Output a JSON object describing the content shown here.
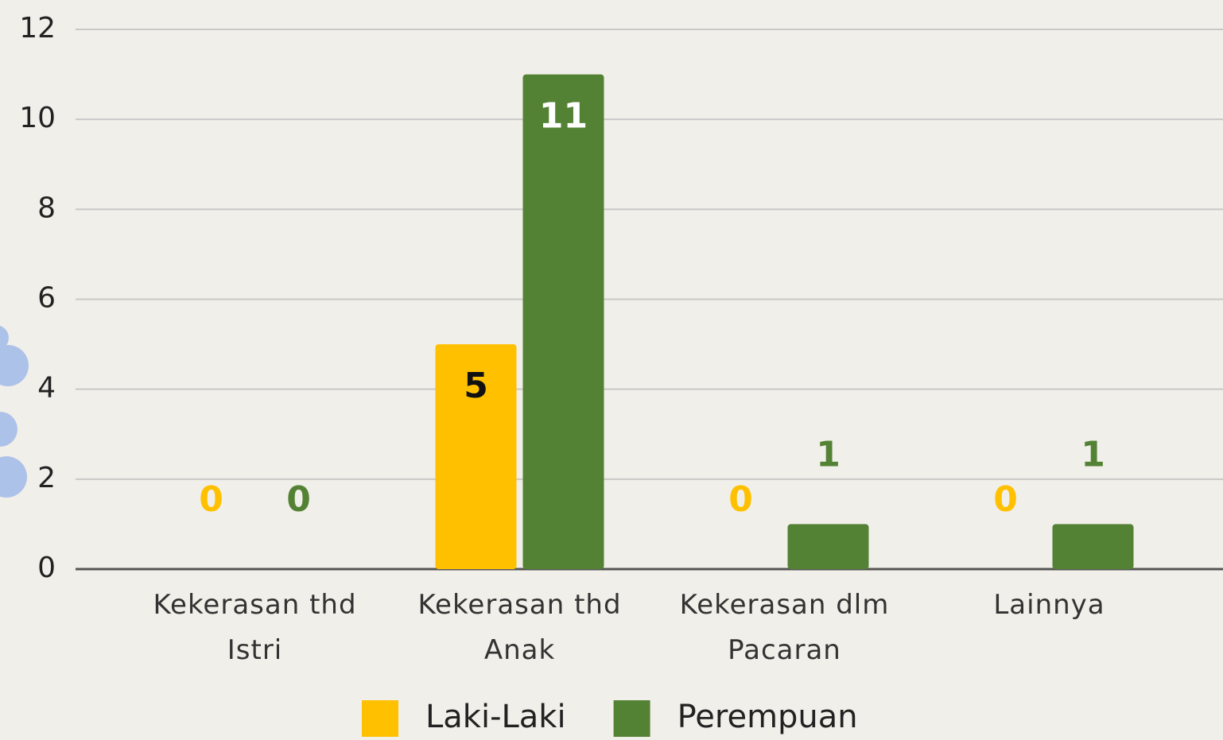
{
  "chart_data": {
    "type": "bar",
    "categories": [
      "Kekerasan thd Istri",
      "Kekerasan thd Anak",
      "Kekerasan dlm Pacaran",
      "Lainnya"
    ],
    "series": [
      {
        "name": "Laki-Laki",
        "color": "#ffc000",
        "values": [
          0,
          5,
          0,
          0
        ]
      },
      {
        "name": "Perempuan",
        "color": "#548235",
        "values": [
          0,
          11,
          1,
          1
        ]
      }
    ],
    "ylim": [
      0,
      12
    ],
    "yticks": [
      0,
      2,
      4,
      6,
      8,
      10,
      12
    ],
    "grid": true,
    "legend": "bottom"
  }
}
